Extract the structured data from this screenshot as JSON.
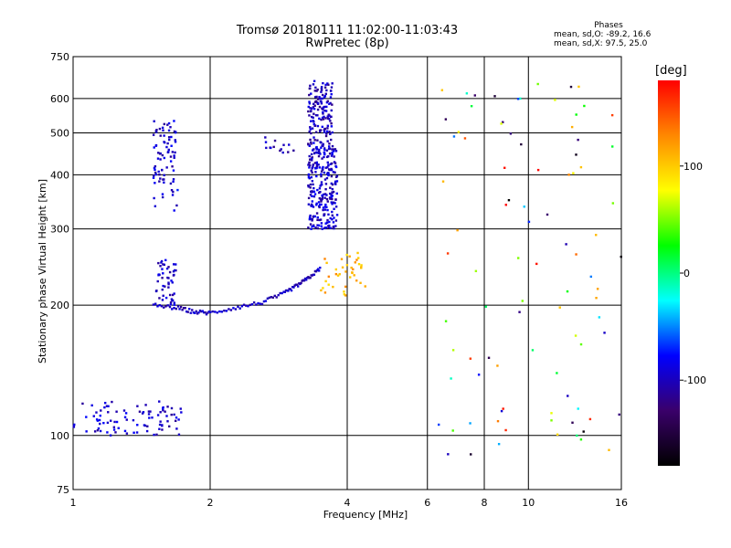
{
  "header": {
    "title_line1": "Tromsø 20180111 11:02:00-11:03:43",
    "title_line2": "RwPretec (8p)"
  },
  "phase_box": {
    "title": "Phases",
    "line1": "mean, sd,O: -89.2, 16.6",
    "line2": "mean, sd,X:  97.5, 25.0"
  },
  "colorbar": {
    "unit_label": "[deg]",
    "ticks": [
      "100",
      "0",
      "-100"
    ],
    "tick_values": [
      100,
      0,
      -100
    ],
    "range": [
      -180,
      180
    ],
    "colors": [
      "#ff0000",
      "#ff8800",
      "#ffff00",
      "#00ff00",
      "#00ffff",
      "#0000ff",
      "#3a006a",
      "#000000"
    ]
  },
  "chart_data": {
    "type": "scatter",
    "title": "Tromsø 20180111 11:02:00-11:03:43",
    "subtitle": "RwPretec (8p)",
    "xlabel": "Frequency [MHz]",
    "ylabel": "Stationary phase Virtual Height [km]",
    "x_scale": "log",
    "y_scale": "log",
    "xlim": [
      1,
      16
    ],
    "ylim": [
      75,
      750
    ],
    "x_ticks": [
      1,
      2,
      4,
      6,
      8,
      10,
      16
    ],
    "x_tick_labels": [
      "1",
      "2",
      "4",
      "6",
      "8",
      "10",
      "16"
    ],
    "y_ticks": [
      75,
      100,
      200,
      300,
      400,
      500,
      600,
      750
    ],
    "y_tick_labels": [
      "75",
      "100",
      "200",
      "300",
      "400",
      "500",
      "600",
      "750"
    ],
    "grid": true,
    "color_scale": {
      "label": "[deg]",
      "min": -180,
      "max": 180
    },
    "clusters": [
      {
        "x": [
          1.0,
          1.73
        ],
        "y": [
          100,
          120
        ],
        "phase": -95,
        "n": 90
      },
      {
        "x": [
          1.5,
          1.68
        ],
        "y": [
          380,
          540
        ],
        "phase": -95,
        "n": 70
      },
      {
        "x": [
          1.5,
          1.7
        ],
        "y": [
          330,
          400
        ],
        "phase": -85,
        "n": 12
      },
      {
        "x": [
          1.52,
          1.68
        ],
        "y": [
          200,
          255
        ],
        "phase": -100,
        "n": 50
      },
      {
        "x": [
          3.28,
          3.72
        ],
        "y": [
          470,
          660
        ],
        "phase": -100,
        "n": 140
      },
      {
        "x": [
          3.28,
          3.8
        ],
        "y": [
          300,
          470
        ],
        "phase": -95,
        "n": 260
      },
      {
        "x": [
          3.5,
          4.4
        ],
        "y": [
          210,
          265
        ],
        "phase": 110,
        "n": 40
      },
      {
        "x": [
          2.6,
          3.1
        ],
        "y": [
          450,
          500
        ],
        "phase": -100,
        "n": 14
      },
      {
        "x": [
          6.3,
          16.0
        ],
        "y": [
          90,
          660
        ],
        "phase": 0,
        "n": 90
      }
    ],
    "traces": [
      {
        "x": [
          1.5,
          1.7,
          1.85,
          2.0,
          2.3,
          2.6,
          2.9,
          3.1,
          3.3,
          3.5
        ],
        "y": [
          200,
          197,
          193,
          192,
          198,
          203,
          213,
          222,
          232,
          244
        ],
        "phase": -100
      }
    ]
  }
}
